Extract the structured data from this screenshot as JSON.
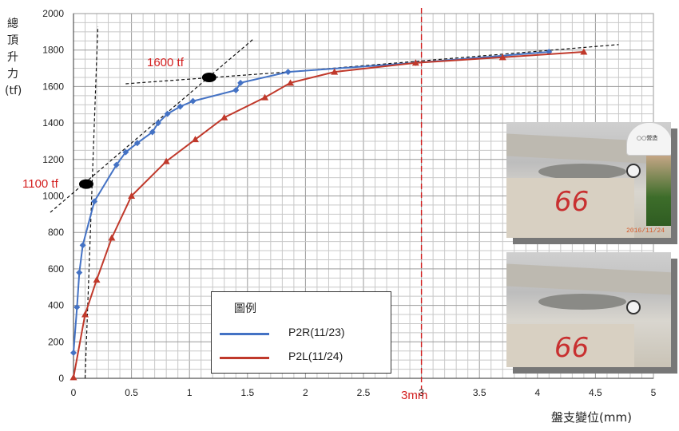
{
  "chart_data": {
    "type": "line",
    "title": "",
    "xlabel": "盤支變位(mm)",
    "ylabel": "總頂升力(tf)",
    "xlim": [
      0,
      5
    ],
    "ylim": [
      0,
      2000
    ],
    "x_ticks": [
      "0",
      "0.5",
      "1",
      "1.5",
      "2",
      "2.5",
      "3",
      "3.5",
      "4",
      "4.5",
      "5"
    ],
    "y_ticks": [
      "0",
      "200",
      "400",
      "600",
      "800",
      "1000",
      "1200",
      "1400",
      "1600",
      "1800",
      "2000"
    ],
    "grid": true,
    "legend_position": "bottom-center",
    "legend_title": "圖例",
    "series": [
      {
        "name": "P2R(11/23)",
        "color": "#4472c4",
        "marker": "diamond",
        "points": [
          [
            0.0,
            140
          ],
          [
            0.03,
            390
          ],
          [
            0.05,
            580
          ],
          [
            0.08,
            730
          ],
          [
            0.18,
            970
          ],
          [
            0.37,
            1170
          ],
          [
            0.45,
            1240
          ],
          [
            0.55,
            1290
          ],
          [
            0.68,
            1350
          ],
          [
            0.73,
            1400
          ],
          [
            0.81,
            1450
          ],
          [
            0.92,
            1490
          ],
          [
            1.03,
            1520
          ],
          [
            1.4,
            1580
          ],
          [
            1.44,
            1620
          ],
          [
            1.85,
            1680
          ],
          [
            2.95,
            1730
          ],
          [
            4.1,
            1790
          ]
        ]
      },
      {
        "name": "P2L(11/24)",
        "color": "#c0392b",
        "marker": "triangle",
        "points": [
          [
            0.0,
            5
          ],
          [
            0.1,
            350
          ],
          [
            0.2,
            540
          ],
          [
            0.33,
            770
          ],
          [
            0.5,
            1000
          ],
          [
            0.8,
            1190
          ],
          [
            1.05,
            1310
          ],
          [
            1.3,
            1430
          ],
          [
            1.65,
            1540
          ],
          [
            1.87,
            1620
          ],
          [
            2.25,
            1680
          ],
          [
            2.95,
            1730
          ],
          [
            3.7,
            1760
          ],
          [
            4.4,
            1790
          ]
        ]
      }
    ],
    "reference_line": {
      "x": 3,
      "label": "3mm",
      "color": "#d42020"
    },
    "annotations": [
      {
        "label": "1600  tf",
        "x": 1.17,
        "y": 1650
      },
      {
        "label": "1100 tf",
        "x": 0.11,
        "y": 1065
      }
    ],
    "tangent_lines": [
      {
        "from": [
          0.1,
          0
        ],
        "to": [
          0.21,
          1930
        ]
      },
      {
        "from": [
          -0.2,
          910
        ],
        "to": [
          1.55,
          1860
        ]
      },
      {
        "from": [
          0.45,
          1615
        ],
        "to": [
          1.85,
          1680
        ]
      },
      {
        "from": [
          1.85,
          1680
        ],
        "to": [
          4.7,
          1830
        ]
      }
    ]
  },
  "photos": [
    {
      "pier_number": "66",
      "timestamp": "2016/11/24",
      "helmet_text": "○○營造"
    },
    {
      "pier_number": "66"
    }
  ]
}
